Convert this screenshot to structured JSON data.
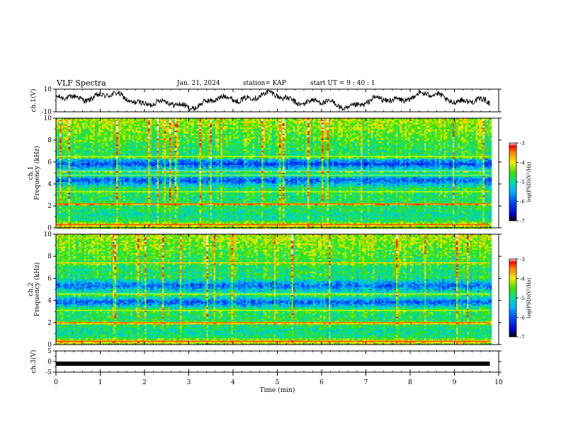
{
  "header": {
    "title": "VLF Spectra",
    "date": "Jan. 21, 2024",
    "station": "station= KAP",
    "start": "start UT =  9 : 40 : 1"
  },
  "chart_data": [
    {
      "type": "line",
      "ylabel": "ch.1(V)",
      "ylim": [
        -10,
        10
      ],
      "yticks": [
        "10",
        "-10"
      ],
      "xlim": [
        0,
        10
      ],
      "trace": "noisy waveform varying roughly between -8 V and +8 V over 0–9.8 min",
      "color": "#000000"
    },
    {
      "type": "heatmap",
      "ylabel": "ch.1\nFrequency (kHz)",
      "ylim": [
        0,
        10
      ],
      "yticks": [
        "0",
        "2",
        "4",
        "6",
        "8",
        "10"
      ],
      "xlim": [
        0,
        10
      ],
      "data_extent_x": [
        0,
        9.8
      ],
      "colorbar": {
        "label": "log(PSD)(V²/Hz)",
        "range": [
          -7,
          -3
        ],
        "ticks": [
          "-7",
          "-6",
          "-5",
          "-4",
          "-3"
        ]
      }
    },
    {
      "type": "heatmap",
      "ylabel": "ch.2\nFrequency (kHz)",
      "ylim": [
        0,
        10
      ],
      "yticks": [
        "0",
        "2",
        "4",
        "6",
        "8",
        "10"
      ],
      "xlim": [
        0,
        10
      ],
      "data_extent_x": [
        0,
        9.8
      ],
      "colorbar": {
        "label": "log(PSD)(V²/Hz)",
        "range": [
          -7,
          -3
        ],
        "ticks": [
          "-7",
          "-6",
          "-5",
          "-4",
          "-3"
        ]
      }
    },
    {
      "type": "line",
      "ylabel": "ch.3(V)",
      "ylim": [
        -5,
        5
      ],
      "yticks": [
        "5",
        "0",
        "-5"
      ],
      "xlim": [
        0,
        10
      ],
      "trace": "constant near -1 V",
      "constant_value": -1,
      "xlabel": "Time (min)",
      "xticks": [
        "0",
        "1",
        "2",
        "3",
        "4",
        "5",
        "6",
        "7",
        "8",
        "9",
        "10"
      ]
    }
  ]
}
